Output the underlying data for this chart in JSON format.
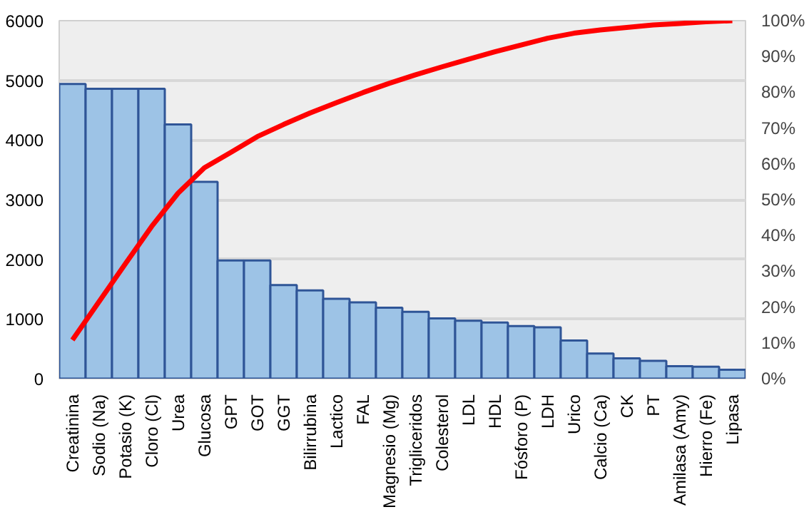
{
  "chart_data": {
    "type": "bar",
    "categories": [
      "Creatinina",
      "Sodio (Na)",
      "Potasio (K)",
      "Cloro (Cl)",
      "Urea",
      "Glucosa",
      "GPT",
      "GOT",
      "GGT",
      "Bilirrubina",
      "Lactico",
      "FAL",
      "Magnesio (Mg)",
      "Trigliceridos",
      "Colesterol",
      "LDL",
      "HDL",
      "Fósforo (P)",
      "LDH",
      "Urico",
      "Calcio (Ca)",
      "CK",
      "PT",
      "Amilasa (Amy)",
      "Hierro (Fe)",
      "Lipasa"
    ],
    "series": [
      {
        "color": "#9dc3e6",
        "values": [
          4940,
          4860,
          4860,
          4860,
          4260,
          3300,
          1980,
          1980,
          1570,
          1480,
          1340,
          1280,
          1190,
          1120,
          1010,
          970,
          940,
          880,
          860,
          640,
          420,
          340,
          300,
          210,
          200,
          150
        ]
      },
      {
        "type": "line",
        "axis": "y2",
        "color": "#ff0000",
        "values": [
          10.8,
          21.4,
          32.0,
          42.5,
          51.8,
          58.9,
          63.2,
          67.6,
          71.0,
          74.2,
          77.1,
          79.9,
          82.5,
          84.9,
          87.1,
          89.2,
          91.3,
          93.2,
          95.1,
          96.5,
          97.4,
          98.1,
          98.8,
          99.2,
          99.7,
          100
        ]
      }
    ],
    "ylim": [
      0,
      6000
    ],
    "yticks": [
      0,
      1000,
      2000,
      3000,
      4000,
      5000,
      6000
    ],
    "y2lim": [
      0,
      100
    ],
    "y2ticks": [
      {
        "value": 0,
        "label": "0%"
      },
      {
        "value": 10,
        "label": "10%"
      },
      {
        "value": 20,
        "label": "20%"
      },
      {
        "value": 30,
        "label": "30%"
      },
      {
        "value": 40,
        "label": "40%"
      },
      {
        "value": 50,
        "label": "50%"
      },
      {
        "value": 60,
        "label": "60%"
      },
      {
        "value": 70,
        "label": "70%"
      },
      {
        "value": 80,
        "label": "80%"
      },
      {
        "value": 90,
        "label": "90%"
      },
      {
        "value": 100,
        "label": "100%"
      }
    ],
    "grid": "y"
  }
}
